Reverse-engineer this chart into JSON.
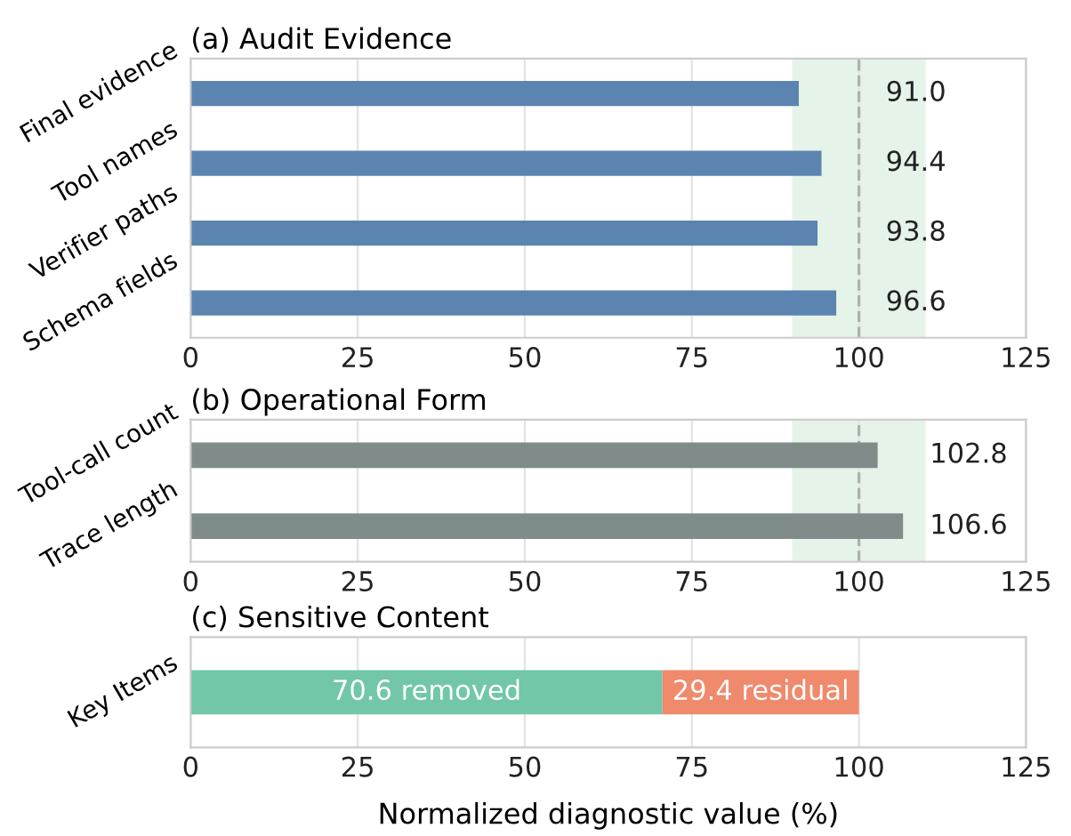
{
  "chart_data": [
    {
      "type": "bar",
      "orientation": "horizontal",
      "title": "(a) Audit Evidence",
      "categories": [
        "Final evidence",
        "Tool names",
        "Verifier paths",
        "Schema fields"
      ],
      "values": [
        91.0,
        94.4,
        93.8,
        96.6
      ],
      "value_labels": [
        "91.0",
        "94.4",
        "93.8",
        "96.6"
      ],
      "color": "#5b84b1",
      "xlim": [
        0,
        125
      ],
      "xticks": [
        0,
        25,
        50,
        75,
        100,
        125
      ],
      "grid": "x",
      "ref_lines": [
        {
          "axis": "x",
          "value": 100,
          "color": "#b0b0b0",
          "line_style": "dashed"
        }
      ],
      "bands": [
        {
          "axis": "x",
          "from": 90,
          "to": 110,
          "color": "#e6f3e8"
        }
      ]
    },
    {
      "type": "bar",
      "orientation": "horizontal",
      "title": "(b) Operational Form",
      "categories": [
        "Tool-call count",
        "Trace length"
      ],
      "values": [
        102.8,
        106.6
      ],
      "value_labels": [
        "102.8",
        "106.6"
      ],
      "color": "#7f8c8a",
      "xlim": [
        0,
        125
      ],
      "xticks": [
        0,
        25,
        50,
        75,
        100,
        125
      ],
      "grid": "x",
      "ref_lines": [
        {
          "axis": "x",
          "value": 100,
          "color": "#b0b0b0",
          "line_style": "dashed"
        }
      ],
      "bands": [
        {
          "axis": "x",
          "from": 90,
          "to": 110,
          "color": "#e6f3e8"
        }
      ]
    },
    {
      "type": "bar",
      "orientation": "horizontal",
      "stacked": true,
      "title": "(c) Sensitive Content",
      "xlabel": "Normalized diagnostic value (%)",
      "categories": [
        "Key Items"
      ],
      "series": [
        {
          "color": "#72c7a8",
          "values": [
            70.6
          ],
          "value_labels": [
            "70.6 removed"
          ]
        },
        {
          "color": "#f08a6c",
          "values": [
            29.4
          ],
          "value_labels": [
            "29.4 residual"
          ]
        }
      ],
      "xlim": [
        0,
        125
      ],
      "xticks": [
        0,
        25,
        50,
        75,
        100,
        125
      ],
      "grid": "x"
    }
  ]
}
